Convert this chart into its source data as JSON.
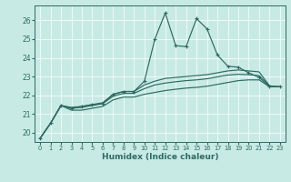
{
  "xlabel": "Humidex (Indice chaleur)",
  "xlim": [
    -0.5,
    23.5
  ],
  "ylim": [
    19.5,
    26.8
  ],
  "xticks": [
    0,
    1,
    2,
    3,
    4,
    5,
    6,
    7,
    8,
    9,
    10,
    11,
    12,
    13,
    14,
    15,
    16,
    17,
    18,
    19,
    20,
    21,
    22,
    23
  ],
  "yticks": [
    20,
    21,
    22,
    23,
    24,
    25,
    26
  ],
  "bg_color": "#c8eae4",
  "line_color": "#2d6b62",
  "grid_color": "#ffffff",
  "line1_x": [
    0,
    1,
    2,
    3,
    4,
    5,
    6,
    7,
    8,
    9,
    10,
    11,
    12,
    13,
    14,
    15,
    16,
    17,
    18,
    19,
    20,
    21,
    22,
    23
  ],
  "line1_y": [
    19.7,
    20.5,
    21.45,
    21.3,
    21.4,
    21.5,
    21.55,
    22.05,
    22.2,
    22.2,
    22.75,
    25.0,
    26.4,
    24.65,
    24.6,
    26.1,
    25.55,
    24.15,
    23.55,
    23.5,
    23.2,
    22.95,
    22.45,
    22.45
  ],
  "line2_x": [
    0,
    1,
    2,
    3,
    4,
    5,
    6,
    7,
    8,
    9,
    10,
    11,
    12,
    13,
    14,
    15,
    16,
    17,
    18,
    19,
    20,
    21,
    22,
    23
  ],
  "line2_y": [
    19.7,
    20.5,
    21.45,
    21.35,
    21.4,
    21.5,
    21.6,
    22.05,
    22.2,
    22.2,
    22.55,
    22.75,
    22.9,
    22.95,
    23.0,
    23.05,
    23.1,
    23.2,
    23.3,
    23.35,
    23.3,
    23.25,
    22.5,
    22.45
  ],
  "line3_x": [
    0,
    1,
    2,
    3,
    4,
    5,
    6,
    7,
    8,
    9,
    10,
    11,
    12,
    13,
    14,
    15,
    16,
    17,
    18,
    19,
    20,
    21,
    22,
    23
  ],
  "line3_y": [
    19.7,
    20.5,
    21.45,
    21.3,
    21.35,
    21.45,
    21.55,
    21.95,
    22.1,
    22.1,
    22.35,
    22.55,
    22.65,
    22.72,
    22.78,
    22.82,
    22.88,
    22.98,
    23.08,
    23.12,
    23.1,
    23.05,
    22.5,
    22.45
  ],
  "line4_x": [
    0,
    1,
    2,
    3,
    4,
    5,
    6,
    7,
    8,
    9,
    10,
    11,
    12,
    13,
    14,
    15,
    16,
    17,
    18,
    19,
    20,
    21,
    22,
    23
  ],
  "line4_y": [
    19.7,
    20.5,
    21.45,
    21.2,
    21.2,
    21.3,
    21.4,
    21.75,
    21.9,
    21.9,
    22.05,
    22.15,
    22.25,
    22.32,
    22.38,
    22.42,
    22.48,
    22.58,
    22.68,
    22.78,
    22.82,
    22.82,
    22.45,
    22.45
  ]
}
